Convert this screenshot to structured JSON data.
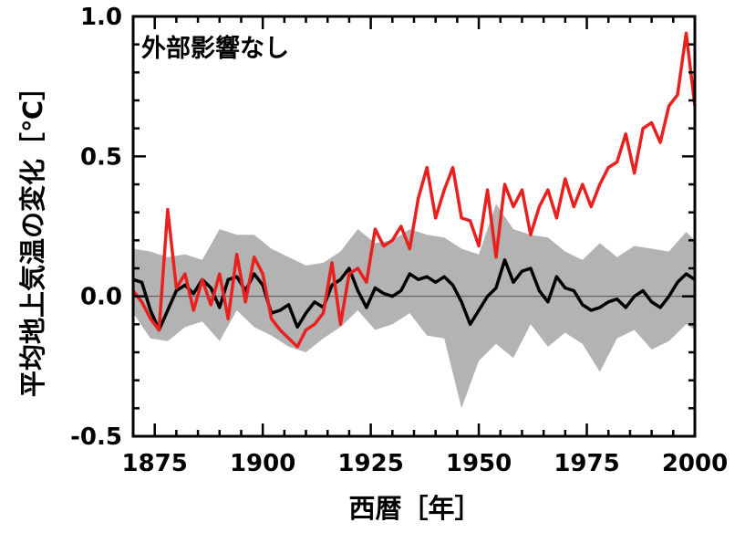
{
  "chart_data": {
    "type": "line",
    "annotation": "外部影響なし",
    "xlabel": "西暦［年］",
    "ylabel": "平均地上気温の変化［℃］",
    "xlim": [
      1870,
      2000
    ],
    "ylim": [
      -0.5,
      1.0
    ],
    "xticks": [
      1875,
      1900,
      1925,
      1950,
      1975,
      2000
    ],
    "yticks": [
      -0.5,
      0.0,
      0.5,
      1.0
    ],
    "ytick_labels": [
      "-0.5",
      "0.0",
      "0.5",
      "1.0"
    ],
    "grid": false,
    "zero_line": true,
    "colors": {
      "observed": "#e8201e",
      "model_mean": "#000000",
      "model_range": "#b3b3b3"
    },
    "series": [
      {
        "style": "line",
        "color": "#e8201e",
        "x": [
          1870,
          1872,
          1874,
          1876,
          1878,
          1880,
          1882,
          1884,
          1886,
          1888,
          1890,
          1892,
          1894,
          1896,
          1898,
          1900,
          1902,
          1904,
          1906,
          1908,
          1910,
          1912,
          1914,
          1916,
          1918,
          1920,
          1922,
          1924,
          1926,
          1928,
          1930,
          1932,
          1934,
          1936,
          1938,
          1940,
          1942,
          1944,
          1946,
          1948,
          1950,
          1952,
          1954,
          1956,
          1958,
          1960,
          1962,
          1964,
          1966,
          1968,
          1970,
          1972,
          1974,
          1976,
          1978,
          1980,
          1982,
          1984,
          1986,
          1988,
          1990,
          1992,
          1994,
          1996,
          1998,
          2000
        ],
        "values": [
          0.02,
          -0.02,
          -0.08,
          -0.12,
          0.31,
          0.03,
          0.08,
          -0.05,
          0.06,
          -0.03,
          0.08,
          -0.08,
          0.15,
          -0.02,
          0.14,
          0.08,
          -0.08,
          -0.12,
          -0.15,
          -0.18,
          -0.12,
          -0.1,
          -0.06,
          0.12,
          -0.1,
          0.08,
          0.1,
          0.05,
          0.24,
          0.18,
          0.2,
          0.25,
          0.17,
          0.35,
          0.46,
          0.28,
          0.38,
          0.46,
          0.28,
          0.27,
          0.18,
          0.38,
          0.14,
          0.4,
          0.32,
          0.38,
          0.22,
          0.32,
          0.38,
          0.28,
          0.42,
          0.32,
          0.4,
          0.32,
          0.4,
          0.46,
          0.48,
          0.58,
          0.44,
          0.6,
          0.62,
          0.55,
          0.68,
          0.72,
          0.94,
          0.68
        ]
      },
      {
        "style": "line",
        "color": "#000000",
        "x": [
          1870,
          1872,
          1874,
          1876,
          1878,
          1880,
          1882,
          1884,
          1886,
          1888,
          1890,
          1892,
          1894,
          1896,
          1898,
          1900,
          1902,
          1904,
          1906,
          1908,
          1910,
          1912,
          1914,
          1916,
          1918,
          1920,
          1922,
          1924,
          1926,
          1928,
          1930,
          1932,
          1934,
          1936,
          1938,
          1940,
          1942,
          1944,
          1946,
          1948,
          1950,
          1952,
          1954,
          1956,
          1958,
          1960,
          1962,
          1964,
          1966,
          1968,
          1970,
          1972,
          1974,
          1976,
          1978,
          1980,
          1982,
          1984,
          1986,
          1988,
          1990,
          1992,
          1994,
          1996,
          1998,
          2000
        ],
        "values": [
          0.06,
          0.05,
          -0.05,
          -0.12,
          -0.05,
          0.02,
          0.04,
          0.01,
          0.06,
          0.03,
          -0.04,
          0.06,
          0.07,
          0.02,
          0.08,
          0.04,
          -0.06,
          -0.05,
          -0.03,
          -0.11,
          -0.06,
          -0.02,
          -0.04,
          0.04,
          0.06,
          0.1,
          0.02,
          -0.04,
          0.03,
          0.01,
          0.0,
          0.02,
          0.08,
          0.06,
          0.07,
          0.05,
          0.07,
          0.04,
          -0.02,
          -0.1,
          -0.05,
          0.0,
          0.03,
          0.13,
          0.05,
          0.09,
          0.1,
          0.02,
          -0.02,
          0.07,
          0.03,
          0.02,
          -0.03,
          -0.05,
          -0.04,
          -0.02,
          -0.01,
          -0.04,
          0.0,
          0.02,
          -0.02,
          -0.04,
          0.0,
          0.05,
          0.08,
          0.06
        ]
      },
      {
        "style": "band",
        "color": "#b3b3b3",
        "x": [
          1870,
          1874,
          1878,
          1882,
          1886,
          1890,
          1894,
          1898,
          1902,
          1906,
          1910,
          1914,
          1918,
          1922,
          1926,
          1930,
          1934,
          1938,
          1942,
          1946,
          1950,
          1954,
          1958,
          1962,
          1966,
          1970,
          1974,
          1978,
          1982,
          1986,
          1990,
          1994,
          1998,
          2000
        ],
        "low": [
          -0.06,
          -0.15,
          -0.16,
          -0.11,
          -0.09,
          -0.16,
          -0.05,
          -0.11,
          -0.14,
          -0.18,
          -0.2,
          -0.15,
          -0.11,
          -0.05,
          -0.12,
          -0.1,
          -0.06,
          -0.14,
          -0.15,
          -0.4,
          -0.23,
          -0.17,
          -0.22,
          -0.1,
          -0.18,
          -0.13,
          -0.17,
          -0.27,
          -0.15,
          -0.12,
          -0.19,
          -0.16,
          -0.1,
          -0.12
        ],
        "high": [
          0.17,
          0.16,
          0.14,
          0.15,
          0.13,
          0.24,
          0.22,
          0.22,
          0.17,
          0.14,
          0.11,
          0.12,
          0.16,
          0.24,
          0.19,
          0.2,
          0.24,
          0.22,
          0.21,
          0.17,
          0.15,
          0.33,
          0.24,
          0.22,
          0.21,
          0.16,
          0.13,
          0.19,
          0.14,
          0.18,
          0.17,
          0.16,
          0.23,
          0.2
        ]
      }
    ]
  }
}
